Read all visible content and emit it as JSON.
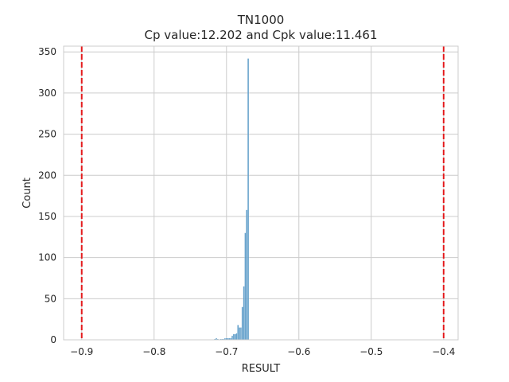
{
  "chart_data": {
    "type": "bar",
    "title": "TN1000",
    "subtitle": "Cp value:12.202 and Cpk value:11.461",
    "xlabel": "RESULT",
    "ylabel": "Count",
    "xlim": [
      -0.925,
      -0.38
    ],
    "ylim": [
      0,
      357
    ],
    "xticks": [
      -0.9,
      -0.8,
      -0.7,
      -0.6,
      -0.5,
      -0.4
    ],
    "xtick_labels": [
      "−0.9",
      "−0.8",
      "−0.7",
      "−0.6",
      "−0.5",
      "−0.4"
    ],
    "yticks": [
      0,
      50,
      100,
      150,
      200,
      250,
      300,
      350
    ],
    "ytick_labels": [
      "0",
      "50",
      "100",
      "150",
      "200",
      "250",
      "300",
      "350"
    ],
    "grid": true,
    "bar_color": "#4c92c3",
    "limit_color": "#e41a1c",
    "spec_limits": [
      -0.9,
      -0.4
    ],
    "bin_width": 0.002,
    "histogram": [
      {
        "x": -0.716,
        "count": 1
      },
      {
        "x": -0.714,
        "count": 2
      },
      {
        "x": -0.712,
        "count": 1
      },
      {
        "x": -0.708,
        "count": 1
      },
      {
        "x": -0.706,
        "count": 1
      },
      {
        "x": -0.704,
        "count": 1
      },
      {
        "x": -0.702,
        "count": 2
      },
      {
        "x": -0.7,
        "count": 2
      },
      {
        "x": -0.698,
        "count": 2
      },
      {
        "x": -0.696,
        "count": 2
      },
      {
        "x": -0.694,
        "count": 2
      },
      {
        "x": -0.692,
        "count": 5
      },
      {
        "x": -0.69,
        "count": 7
      },
      {
        "x": -0.688,
        "count": 7
      },
      {
        "x": -0.686,
        "count": 8
      },
      {
        "x": -0.684,
        "count": 18
      },
      {
        "x": -0.682,
        "count": 15
      },
      {
        "x": -0.68,
        "count": 15
      },
      {
        "x": -0.678,
        "count": 40
      },
      {
        "x": -0.676,
        "count": 65
      },
      {
        "x": -0.674,
        "count": 130
      },
      {
        "x": -0.672,
        "count": 158
      },
      {
        "x": -0.67,
        "count": 342
      }
    ]
  }
}
